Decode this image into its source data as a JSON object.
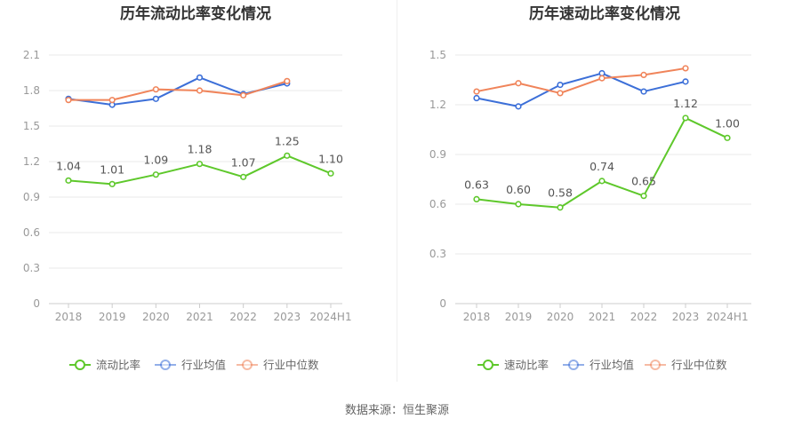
{
  "source": "数据来源：恒生聚源",
  "colors": {
    "company": "#5ec82b",
    "industry_avg": "#3c6fd8",
    "industry_median": "#f0845a"
  },
  "chart_data": [
    {
      "type": "line",
      "title": "历年流动比率变化情况",
      "categories": [
        "2018",
        "2019",
        "2020",
        "2021",
        "2022",
        "2023",
        "2024H1"
      ],
      "ylim": [
        0,
        2.1
      ],
      "yticks": [
        "0",
        "0.3",
        "0.6",
        "0.9",
        "1.2",
        "1.5",
        "1.8",
        "2.1"
      ],
      "grid": true,
      "legend_position": "bottom",
      "series": [
        {
          "name": "流动比率",
          "role": "company",
          "values": [
            1.04,
            1.01,
            1.09,
            1.18,
            1.07,
            1.25,
            1.1
          ],
          "labels": [
            "1.04",
            "1.01",
            "1.09",
            "1.18",
            "1.07",
            "1.25",
            "1.10"
          ]
        },
        {
          "name": "行业均值",
          "role": "industry_avg",
          "values": [
            1.73,
            1.68,
            1.73,
            1.91,
            1.77,
            1.86,
            null
          ]
        },
        {
          "name": "行业中位数",
          "role": "industry_median",
          "values": [
            1.72,
            1.72,
            1.81,
            1.8,
            1.76,
            1.88,
            null
          ]
        }
      ]
    },
    {
      "type": "line",
      "title": "历年速动比率变化情况",
      "categories": [
        "2018",
        "2019",
        "2020",
        "2021",
        "2022",
        "2023",
        "2024H1"
      ],
      "ylim": [
        0,
        1.5
      ],
      "yticks": [
        "0",
        "0.3",
        "0.6",
        "0.9",
        "1.2",
        "1.5"
      ],
      "grid": true,
      "legend_position": "bottom",
      "series": [
        {
          "name": "速动比率",
          "role": "company",
          "values": [
            0.63,
            0.6,
            0.58,
            0.74,
            0.65,
            1.12,
            1.0
          ],
          "labels": [
            "0.63",
            "0.60",
            "0.58",
            "0.74",
            "0.65",
            "1.12",
            "1.00"
          ]
        },
        {
          "name": "行业均值",
          "role": "industry_avg",
          "values": [
            1.24,
            1.19,
            1.32,
            1.39,
            1.28,
            1.34,
            null
          ]
        },
        {
          "name": "行业中位数",
          "role": "industry_median",
          "values": [
            1.28,
            1.33,
            1.27,
            1.36,
            1.38,
            1.42,
            null
          ]
        }
      ]
    }
  ]
}
